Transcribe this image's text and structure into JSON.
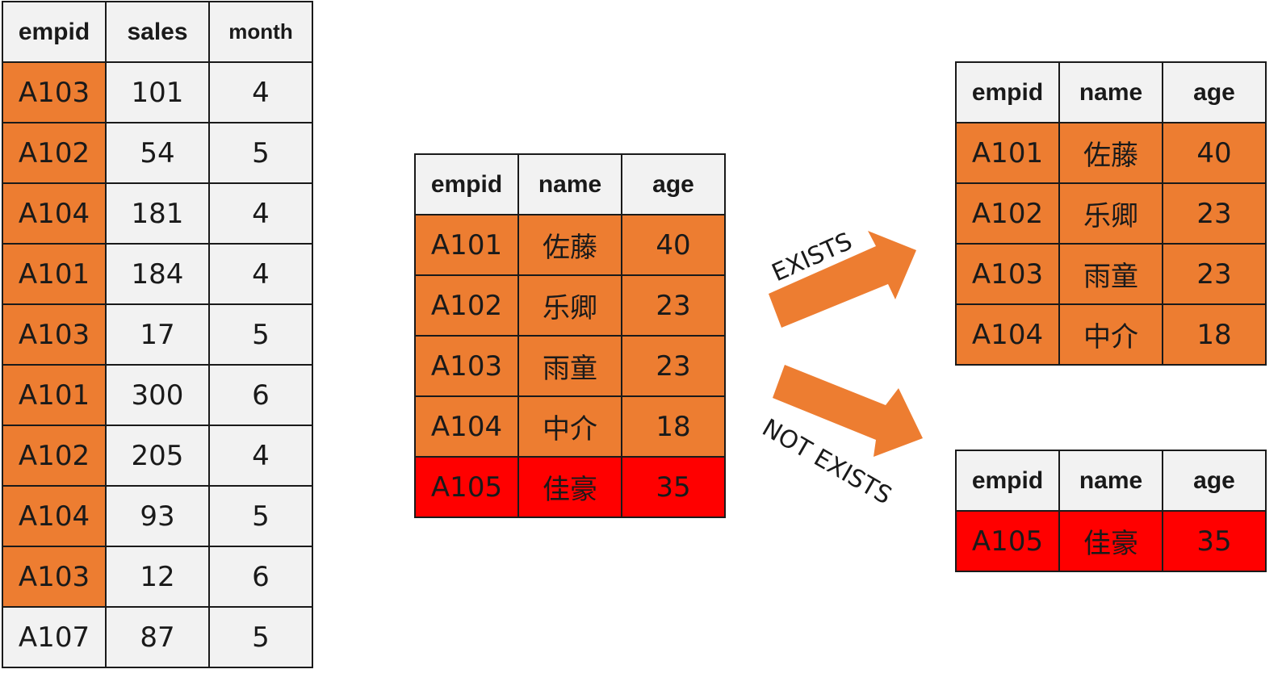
{
  "colors": {
    "matched": "#ed7d31",
    "unmatched": "#ff0000",
    "neutral": "#f2f2f2",
    "arrow": "#ed7d31"
  },
  "sales_table": {
    "headers": [
      "empid",
      "sales",
      "month"
    ],
    "rows": [
      {
        "empid": "A103",
        "sales": "101",
        "month": "4",
        "matched": true
      },
      {
        "empid": "A102",
        "sales": "54",
        "month": "5",
        "matched": true
      },
      {
        "empid": "A104",
        "sales": "181",
        "month": "4",
        "matched": true
      },
      {
        "empid": "A101",
        "sales": "184",
        "month": "4",
        "matched": true
      },
      {
        "empid": "A103",
        "sales": "17",
        "month": "5",
        "matched": true
      },
      {
        "empid": "A101",
        "sales": "300",
        "month": "6",
        "matched": true
      },
      {
        "empid": "A102",
        "sales": "205",
        "month": "4",
        "matched": true
      },
      {
        "empid": "A104",
        "sales": "93",
        "month": "5",
        "matched": true
      },
      {
        "empid": "A103",
        "sales": "12",
        "month": "6",
        "matched": true
      },
      {
        "empid": "A107",
        "sales": "87",
        "month": "5",
        "matched": false
      }
    ]
  },
  "employee_table": {
    "headers": [
      "empid",
      "name",
      "age"
    ],
    "rows": [
      {
        "empid": "A101",
        "name": "佐藤",
        "age": "40",
        "status": "exists"
      },
      {
        "empid": "A102",
        "name": "乐卿",
        "age": "23",
        "status": "exists"
      },
      {
        "empid": "A103",
        "name": "雨童",
        "age": "23",
        "status": "exists"
      },
      {
        "empid": "A104",
        "name": "中介",
        "age": "18",
        "status": "exists"
      },
      {
        "empid": "A105",
        "name": "佳豪",
        "age": "35",
        "status": "not_exists"
      }
    ]
  },
  "arrows": {
    "exists_label": "EXISTS",
    "not_exists_label": "NOT EXISTS"
  },
  "exists_result": {
    "headers": [
      "empid",
      "name",
      "age"
    ],
    "rows": [
      {
        "empid": "A101",
        "name": "佐藤",
        "age": "40"
      },
      {
        "empid": "A102",
        "name": "乐卿",
        "age": "23"
      },
      {
        "empid": "A103",
        "name": "雨童",
        "age": "23"
      },
      {
        "empid": "A104",
        "name": "中介",
        "age": "18"
      }
    ]
  },
  "not_exists_result": {
    "headers": [
      "empid",
      "name",
      "age"
    ],
    "rows": [
      {
        "empid": "A105",
        "name": "佳豪",
        "age": "35"
      }
    ]
  }
}
